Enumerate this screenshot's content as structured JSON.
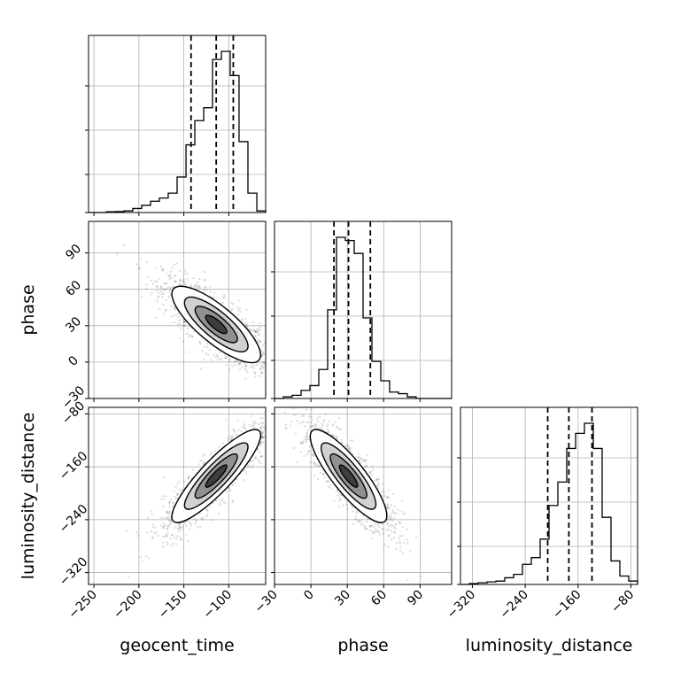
{
  "chart_data": {
    "type": "corner",
    "parameters": [
      "geocent_time",
      "phase",
      "luminosity_distance"
    ],
    "axis_labels": {
      "geocent_time": "geocent_time",
      "phase": "phase",
      "luminosity_distance": "luminosity_distance"
    },
    "ranges": {
      "geocent_time": [
        -256,
        -59
      ],
      "phase": [
        -30,
        116
      ],
      "luminosity_distance": [
        -338,
        -70
      ]
    },
    "ticks": {
      "geocent_time": [
        -250,
        -200,
        -150,
        -100
      ],
      "phase": [
        -30,
        0,
        30,
        60,
        90
      ],
      "luminosity_distance": [
        -320,
        -240,
        -160,
        -80
      ]
    },
    "tick_labels": {
      "geocent_time": [
        "−250",
        "−200",
        "−150",
        "−100"
      ],
      "phase": [
        "−30",
        "0",
        "30",
        "60",
        "90"
      ],
      "luminosity_distance": [
        "−320",
        "−240",
        "−160",
        "−80"
      ]
    },
    "quantiles": {
      "geocent_time": [
        -142,
        -114,
        -95
      ],
      "phase": [
        19,
        31,
        49
      ],
      "luminosity_distance": [
        -206,
        -174,
        -139
      ]
    },
    "histograms": {
      "geocent_time": {
        "edges": [
          -256,
          -246.2,
          -236.3,
          -226.5,
          -216.6,
          -206.8,
          -196.9,
          -187.0,
          -177.2,
          -167.4,
          -157.5,
          -147.6,
          -137.8,
          -127.9,
          -118.1,
          -108.2,
          -98.4,
          -88.6,
          -78.7,
          -68.8,
          -59
        ],
        "counts": [
          0,
          0,
          0.5,
          0.6,
          1,
          2.5,
          4.5,
          7,
          9,
          12,
          22,
          42,
          57,
          65,
          95,
          100,
          85,
          44,
          12,
          1
        ]
      },
      "phase": {
        "edges": [
          -30,
          -22.7,
          -15.4,
          -8.1,
          -0.8,
          6.5,
          13.8,
          21.1,
          28.4,
          35.7,
          43,
          50.3,
          57.6,
          64.9,
          72.2,
          79.5,
          86.8,
          94.1,
          101.4,
          108.7,
          116
        ],
        "counts": [
          0,
          1,
          2,
          5,
          8,
          18,
          55,
          100,
          98,
          90,
          50,
          23,
          11,
          4,
          3,
          1,
          0,
          0,
          0,
          0
        ]
      },
      "luminosity_distance": {
        "edges": [
          -338,
          -324.6,
          -311.2,
          -297.8,
          -284.4,
          -271,
          -257.6,
          -244.2,
          -230.8,
          -217.4,
          -204,
          -190.6,
          -177.2,
          -163.8,
          -150.4,
          -137,
          -123.6,
          -110.2,
          -96.8,
          -83.4,
          -70
        ],
        "counts": [
          0,
          0.5,
          1,
          1.5,
          2,
          4,
          6,
          12,
          16,
          27,
          47,
          61,
          81,
          90,
          96,
          81,
          40,
          14,
          5,
          2
        ]
      }
    },
    "correlations": {
      "phase_vs_geocent_time": -0.8,
      "luminosity_distance_vs_geocent_time": 0.88,
      "luminosity_distance_vs_phase": -0.85
    },
    "grid": true
  }
}
